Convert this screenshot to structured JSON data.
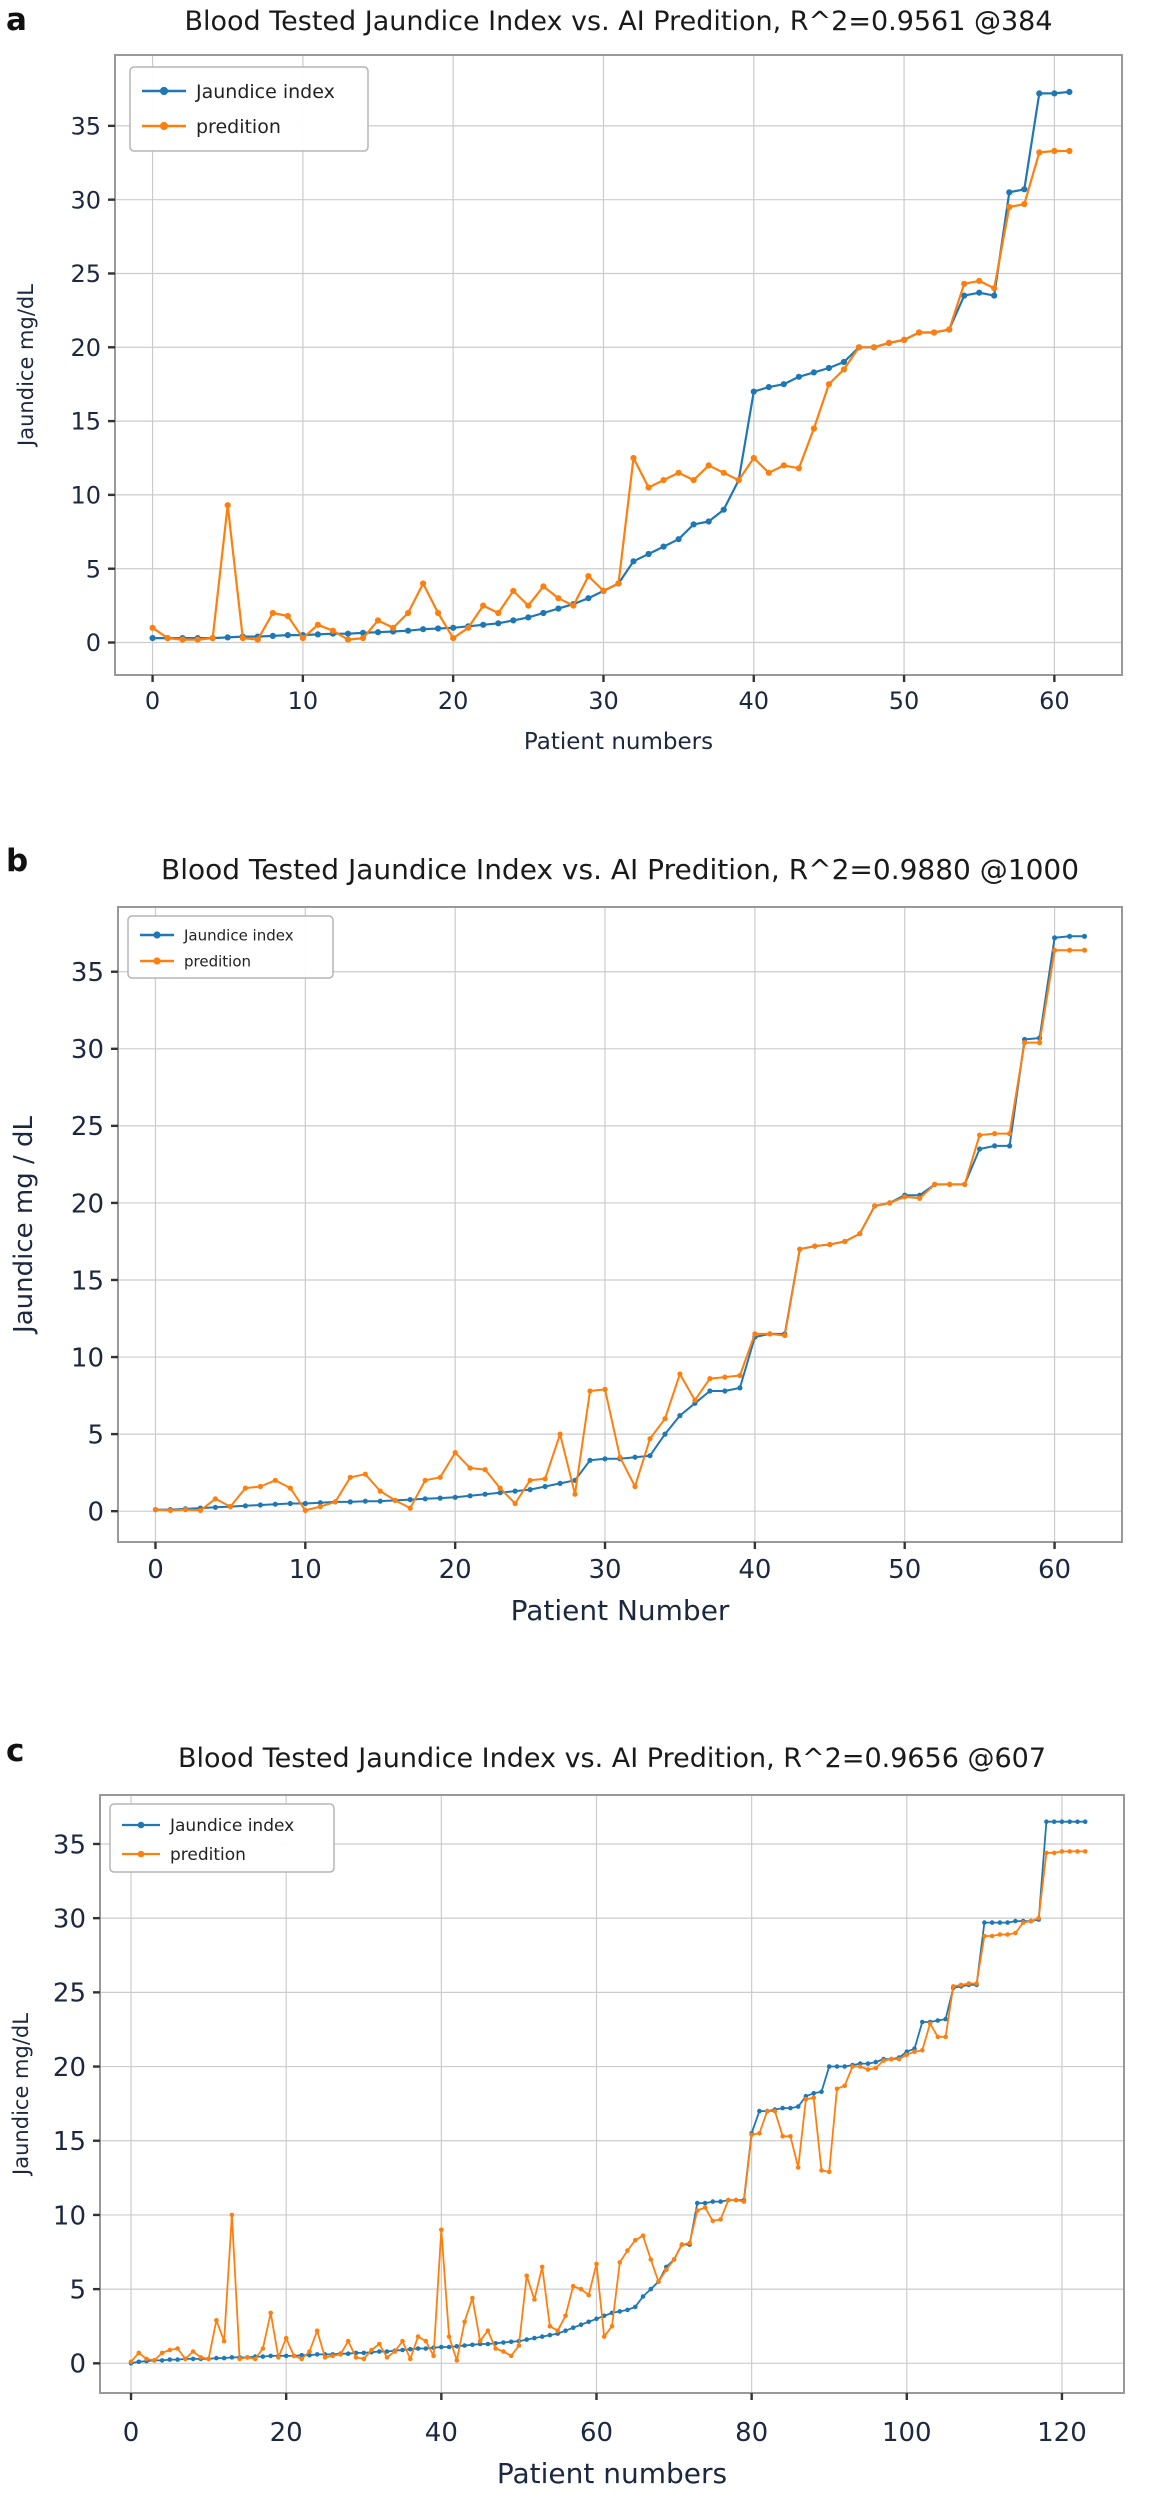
{
  "figure": {
    "background": "#ffffff",
    "colors": {
      "jaundice_index": "#1f77b4",
      "predition": "#ff7f0e",
      "grid": "#cccccc",
      "spine": "#999999",
      "tick_mark": "#333333",
      "tick_text": "#1c2740",
      "title_text": "#1a1a1a"
    }
  },
  "panel_labels": [
    "a",
    "b",
    "c"
  ],
  "chart_data": [
    {
      "type": "line",
      "panel": "a",
      "title": "Blood Tested Jaundice Index vs. AI Predition, R^2=0.9561 @384",
      "xlabel": "Patient numbers",
      "ylabel": "Jaundice mg/dL",
      "x": "patient index 0..61",
      "grid": true,
      "legend_position": "upper-left",
      "xticks": [
        0,
        10,
        20,
        30,
        40,
        50,
        60
      ],
      "yticks": [
        0,
        5,
        10,
        15,
        20,
        25,
        30,
        35
      ],
      "xlim": [
        -2.5,
        64.5
      ],
      "ylim": [
        -2.2,
        39.8
      ],
      "series": [
        {
          "name": "Jaundice index",
          "color": "#1f77b4",
          "values": [
            0.3,
            0.3,
            0.3,
            0.3,
            0.3,
            0.35,
            0.4,
            0.4,
            0.45,
            0.5,
            0.5,
            0.55,
            0.6,
            0.6,
            0.65,
            0.7,
            0.75,
            0.8,
            0.9,
            0.95,
            1.0,
            1.1,
            1.2,
            1.3,
            1.5,
            1.7,
            2.0,
            2.3,
            2.6,
            3.0,
            3.5,
            4.0,
            5.5,
            6.0,
            6.5,
            7.0,
            8.0,
            8.2,
            9.0,
            11.0,
            17.0,
            17.3,
            17.5,
            18.0,
            18.3,
            18.6,
            19.0,
            20.0,
            20.0,
            20.3,
            20.5,
            21.0,
            21.0,
            21.2,
            23.5,
            23.7,
            23.5,
            30.5,
            30.7,
            37.2,
            37.2,
            37.3
          ]
        },
        {
          "name": "predition",
          "color": "#ff7f0e",
          "values": [
            1.0,
            0.3,
            0.2,
            0.2,
            0.3,
            9.3,
            0.3,
            0.2,
            2.0,
            1.8,
            0.3,
            1.2,
            0.8,
            0.2,
            0.3,
            1.5,
            1.0,
            2.0,
            4.0,
            2.0,
            0.3,
            1.0,
            2.5,
            2.0,
            3.5,
            2.5,
            3.8,
            3.0,
            2.5,
            4.5,
            3.5,
            4.0,
            12.5,
            10.5,
            11.0,
            11.5,
            11.0,
            12.0,
            11.5,
            11.0,
            12.5,
            11.5,
            12.0,
            11.8,
            14.5,
            17.5,
            18.5,
            20.0,
            20.0,
            20.3,
            20.5,
            21.0,
            21.0,
            21.2,
            24.3,
            24.5,
            24.0,
            29.5,
            29.7,
            33.2,
            33.3,
            33.3
          ]
        }
      ]
    },
    {
      "type": "line",
      "panel": "b",
      "title": "Blood Tested Jaundice Index vs. AI Predition, R^2=0.9880 @1000",
      "xlabel": "Patient Number",
      "ylabel": "Jaundice mg / dL",
      "x": "patient index 0..62",
      "grid": true,
      "legend_position": "upper-left",
      "xticks": [
        0,
        10,
        20,
        30,
        40,
        50,
        60
      ],
      "yticks": [
        0,
        5,
        10,
        15,
        20,
        25,
        30,
        35
      ],
      "xlim": [
        -2.5,
        64.5
      ],
      "ylim": [
        -2.0,
        39.2
      ],
      "series": [
        {
          "name": "Jaundice index",
          "color": "#1f77b4",
          "values": [
            0.1,
            0.1,
            0.15,
            0.2,
            0.25,
            0.3,
            0.35,
            0.4,
            0.45,
            0.5,
            0.5,
            0.55,
            0.6,
            0.6,
            0.65,
            0.65,
            0.7,
            0.75,
            0.8,
            0.85,
            0.9,
            1.0,
            1.1,
            1.2,
            1.3,
            1.4,
            1.6,
            1.8,
            2.0,
            3.3,
            3.4,
            3.4,
            3.5,
            3.6,
            5.0,
            6.2,
            7.0,
            7.8,
            7.8,
            8.0,
            11.3,
            11.5,
            11.5,
            17.0,
            17.2,
            17.3,
            17.5,
            18.0,
            19.8,
            20.0,
            20.5,
            20.5,
            21.2,
            21.2,
            21.2,
            23.5,
            23.7,
            23.7,
            30.6,
            30.7,
            37.2,
            37.3,
            37.3
          ]
        },
        {
          "name": "predition",
          "color": "#ff7f0e",
          "values": [
            0.1,
            0.05,
            0.1,
            0.05,
            0.8,
            0.3,
            1.5,
            1.6,
            2.0,
            1.5,
            0.05,
            0.3,
            0.6,
            2.2,
            2.4,
            1.3,
            0.7,
            0.2,
            2.0,
            2.2,
            3.8,
            2.8,
            2.7,
            1.5,
            0.5,
            2.0,
            2.1,
            5.0,
            1.1,
            7.8,
            7.9,
            3.5,
            1.6,
            4.7,
            6.0,
            8.9,
            7.2,
            8.6,
            8.7,
            8.8,
            11.5,
            11.5,
            11.4,
            17.0,
            17.2,
            17.3,
            17.5,
            18.0,
            19.8,
            20.0,
            20.4,
            20.3,
            21.2,
            21.2,
            21.2,
            24.4,
            24.5,
            24.5,
            30.4,
            30.4,
            36.4,
            36.4,
            36.4
          ]
        }
      ]
    },
    {
      "type": "line",
      "panel": "c",
      "title": "Blood Tested Jaundice Index vs. AI Predition, R^2=0.9656 @607",
      "xlabel": "Patient numbers",
      "ylabel": "Jaundice mg/dL",
      "x": "patient index 0..123",
      "grid": true,
      "legend_position": "upper-left",
      "xticks": [
        0,
        20,
        40,
        60,
        80,
        100,
        120
      ],
      "yticks": [
        0,
        5,
        10,
        15,
        20,
        25,
        30,
        35
      ],
      "xlim": [
        -4,
        128
      ],
      "ylim": [
        -2.0,
        38.3
      ],
      "series": [
        {
          "name": "Jaundice index",
          "color": "#1f77b4",
          "values": [
            0.0,
            0.1,
            0.15,
            0.2,
            0.2,
            0.25,
            0.25,
            0.3,
            0.3,
            0.3,
            0.3,
            0.35,
            0.35,
            0.4,
            0.4,
            0.4,
            0.45,
            0.45,
            0.5,
            0.5,
            0.5,
            0.5,
            0.55,
            0.55,
            0.6,
            0.6,
            0.6,
            0.65,
            0.65,
            0.7,
            0.7,
            0.75,
            0.8,
            0.8,
            0.85,
            0.9,
            0.95,
            1.0,
            1.0,
            1.05,
            1.1,
            1.1,
            1.15,
            1.2,
            1.25,
            1.3,
            1.3,
            1.35,
            1.4,
            1.45,
            1.5,
            1.6,
            1.7,
            1.8,
            1.9,
            2.0,
            2.2,
            2.4,
            2.6,
            2.8,
            3.0,
            3.2,
            3.4,
            3.5,
            3.6,
            3.8,
            4.5,
            5.0,
            5.5,
            6.5,
            7.0,
            8.0,
            8.0,
            10.8,
            10.8,
            10.9,
            10.9,
            11.0,
            11.0,
            11.0,
            15.5,
            17.0,
            17.0,
            17.1,
            17.2,
            17.2,
            17.3,
            18.0,
            18.2,
            18.3,
            20.0,
            20.0,
            20.0,
            20.1,
            20.2,
            20.2,
            20.3,
            20.5,
            20.5,
            20.6,
            21.0,
            21.2,
            23.0,
            23.0,
            23.1,
            23.2,
            25.3,
            25.4,
            25.5,
            25.5,
            29.7,
            29.7,
            29.7,
            29.7,
            29.8,
            29.8,
            29.8,
            29.9,
            36.5,
            36.5,
            36.5,
            36.5,
            36.5,
            36.5
          ]
        },
        {
          "name": "predition",
          "color": "#ff7f0e",
          "values": [
            0.1,
            0.7,
            0.3,
            0.2,
            0.7,
            0.9,
            1.0,
            0.3,
            0.8,
            0.4,
            0.3,
            2.9,
            1.5,
            10.0,
            0.3,
            0.4,
            0.3,
            1.0,
            3.4,
            0.4,
            1.7,
            0.5,
            0.3,
            0.8,
            2.2,
            0.4,
            0.5,
            0.6,
            1.5,
            0.4,
            0.3,
            0.9,
            1.3,
            0.4,
            0.8,
            1.5,
            0.3,
            1.8,
            1.5,
            0.5,
            9.0,
            1.8,
            0.2,
            2.8,
            4.4,
            1.5,
            2.2,
            1.0,
            0.8,
            0.5,
            1.2,
            5.9,
            4.3,
            6.5,
            2.5,
            2.2,
            3.2,
            5.2,
            5.0,
            4.6,
            6.7,
            1.8,
            2.5,
            6.8,
            7.6,
            8.3,
            8.6,
            7.0,
            5.5,
            6.3,
            7.0,
            8.0,
            8.1,
            10.3,
            10.5,
            9.6,
            9.7,
            11.0,
            11.0,
            10.9,
            15.4,
            15.5,
            17.0,
            17.0,
            15.3,
            15.3,
            13.2,
            17.8,
            17.9,
            13.0,
            12.9,
            18.5,
            18.7,
            20.0,
            20.0,
            19.8,
            19.9,
            20.4,
            20.5,
            20.5,
            20.8,
            21.0,
            21.1,
            22.9,
            22.0,
            22.0,
            25.4,
            25.5,
            25.6,
            25.6,
            28.8,
            28.8,
            28.9,
            28.9,
            29.0,
            29.7,
            29.8,
            30.0,
            34.4,
            34.4,
            34.5,
            34.5,
            34.5,
            34.5
          ]
        }
      ]
    }
  ]
}
